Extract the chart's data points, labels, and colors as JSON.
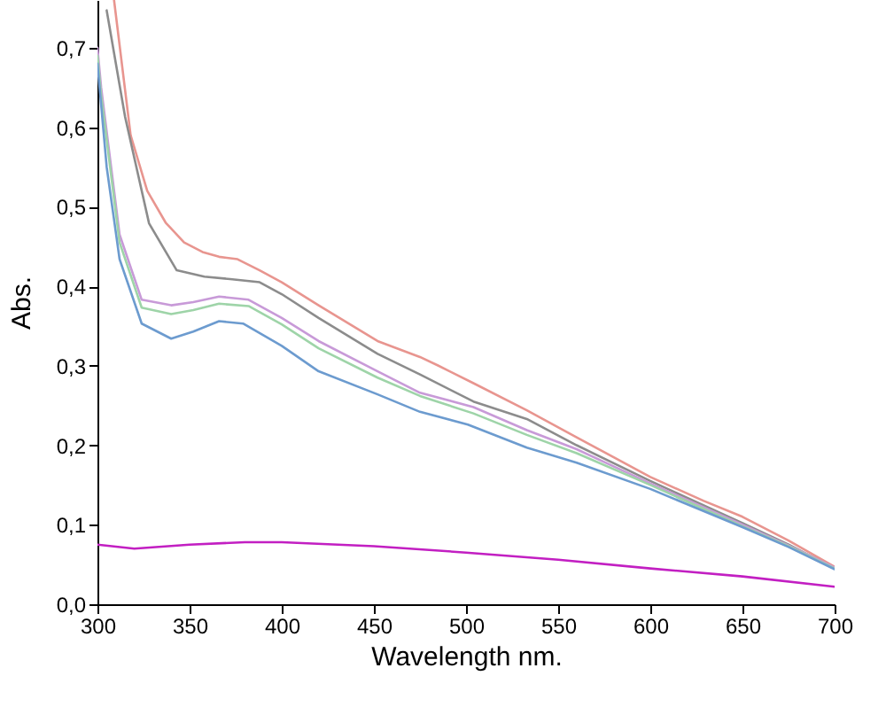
{
  "chart_data": {
    "type": "line",
    "xlabel": "Wavelength nm.",
    "ylabel": "Abs.",
    "xlim": [
      300,
      700
    ],
    "xticks": [
      300,
      350,
      400,
      450,
      500,
      550,
      600,
      650,
      700
    ],
    "ylim": [
      0,
      0.76
    ],
    "yticks": [
      {
        "value": 0,
        "label": "0,0"
      },
      {
        "value": 0.1,
        "label": "0,1"
      },
      {
        "value": 0.2,
        "label": "0,2"
      },
      {
        "value": 0.3,
        "label": "0,3"
      },
      {
        "value": 0.4,
        "label": "0,4"
      },
      {
        "value": 0.5,
        "label": "0,5"
      },
      {
        "value": 0.6,
        "label": "0,6"
      },
      {
        "value": 0.7,
        "label": "0,7"
      }
    ],
    "grid": false,
    "marker": "none",
    "line_style": "solid",
    "series": [
      {
        "color": "#e8958f",
        "x": [
          309,
          318,
          327,
          337,
          347,
          357,
          366,
          376,
          388,
          400,
          420,
          452,
          475,
          485,
          504,
          533,
          560,
          600,
          629,
          650,
          675,
          700
        ],
        "values": [
          0.76,
          0.59,
          0.52,
          0.48,
          0.455,
          0.443,
          0.437,
          0.434,
          0.42,
          0.405,
          0.376,
          0.331,
          0.311,
          0.3,
          0.278,
          0.244,
          0.21,
          0.16,
          0.13,
          0.11,
          0.08,
          0.047
        ]
      },
      {
        "color": "#8c8c8c",
        "x": [
          305,
          315,
          328,
          343,
          358,
          372,
          388,
          400,
          420,
          452,
          475,
          504,
          533,
          560,
          600,
          650,
          675,
          700
        ],
        "values": [
          0.747,
          0.613,
          0.479,
          0.42,
          0.412,
          0.409,
          0.405,
          0.39,
          0.36,
          0.315,
          0.289,
          0.255,
          0.233,
          0.2,
          0.155,
          0.102,
          0.075,
          0.045
        ]
      },
      {
        "color": "#c89ad8",
        "x": [
          300,
          302,
          312,
          324,
          340,
          352,
          366,
          382,
          400,
          420,
          452,
          475,
          504,
          533,
          560,
          600,
          650,
          675,
          700
        ],
        "values": [
          0.7,
          0.65,
          0.465,
          0.383,
          0.376,
          0.38,
          0.387,
          0.383,
          0.36,
          0.331,
          0.293,
          0.266,
          0.248,
          0.219,
          0.195,
          0.152,
          0.1,
          0.074,
          0.046
        ]
      },
      {
        "color": "#9ed4a8",
        "x": [
          300,
          302,
          312,
          324,
          340,
          352,
          366,
          382,
          400,
          420,
          452,
          475,
          504,
          533,
          560,
          600,
          650,
          675,
          700
        ],
        "values": [
          0.69,
          0.64,
          0.455,
          0.373,
          0.365,
          0.37,
          0.378,
          0.375,
          0.352,
          0.322,
          0.285,
          0.262,
          0.24,
          0.213,
          0.19,
          0.15,
          0.098,
          0.073,
          0.045
        ]
      },
      {
        "color": "#6c9bcf",
        "x": [
          300,
          305,
          312,
          324,
          340,
          352,
          366,
          379,
          400,
          420,
          452,
          475,
          501,
          533,
          560,
          600,
          650,
          675,
          700
        ],
        "values": [
          0.68,
          0.55,
          0.434,
          0.353,
          0.334,
          0.343,
          0.356,
          0.353,
          0.325,
          0.293,
          0.264,
          0.242,
          0.226,
          0.197,
          0.178,
          0.145,
          0.097,
          0.072,
          0.044
        ]
      },
      {
        "color": "#c21fc2",
        "x": [
          300,
          320,
          350,
          380,
          400,
          450,
          500,
          550,
          600,
          650,
          700
        ],
        "values": [
          0.075,
          0.07,
          0.075,
          0.078,
          0.078,
          0.073,
          0.065,
          0.056,
          0.045,
          0.035,
          0.022
        ]
      }
    ]
  }
}
